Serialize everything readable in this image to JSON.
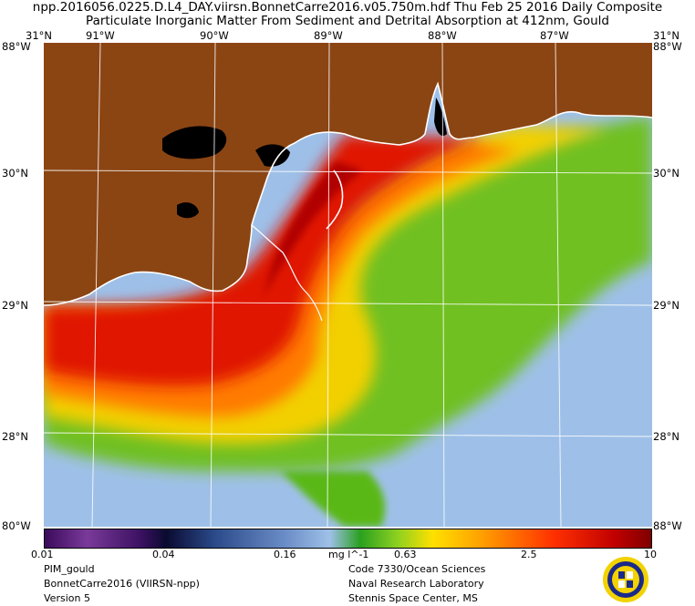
{
  "header": {
    "line1": "npp.2016056.0225.D.L4_DAY.viirsn.BonnetCarre2016.v05.750m.hdf      Thu Feb 25 2016 Daily Composite",
    "line2": "Particulate Inorganic Matter From Sediment and Detrital Absorption at 412nm, Gould"
  },
  "axes": {
    "longitude_labels": [
      "91°W",
      "90°W",
      "89°W",
      "88°W",
      "87°W"
    ],
    "top_left_corner": "31°N",
    "top_right_corner": "31°N",
    "top_left_stack": "88°W",
    "top_right_stack": "88°W",
    "latitude_left": [
      "30°N",
      "29°N",
      "28°N"
    ],
    "latitude_right": [
      "30°N",
      "29°N",
      "28°N"
    ],
    "bottom_left_corner": "80°W",
    "bottom_right_corner": "88°W"
  },
  "colorbar": {
    "ticks": [
      "0.01",
      "0.04",
      "0.16",
      "0.63",
      "2.5",
      "10"
    ],
    "units": "mg l^-1"
  },
  "footer": {
    "left": [
      "PIM_gould",
      "BonnetCarre2016 (VIIRSN-npp)",
      "Version 5"
    ],
    "right": [
      "Code 7330/Ocean Sciences",
      "Naval Research Laboratory",
      "Stennis Space Center, MS"
    ]
  },
  "colors": {
    "land": "#8b4513",
    "water_low": "#9ec0e8",
    "plume_mid": "#8ad020",
    "plume_high": "#ffe000",
    "plume_very_high": "#e02000"
  },
  "icons": {
    "seal": "nrl-seal-icon"
  }
}
